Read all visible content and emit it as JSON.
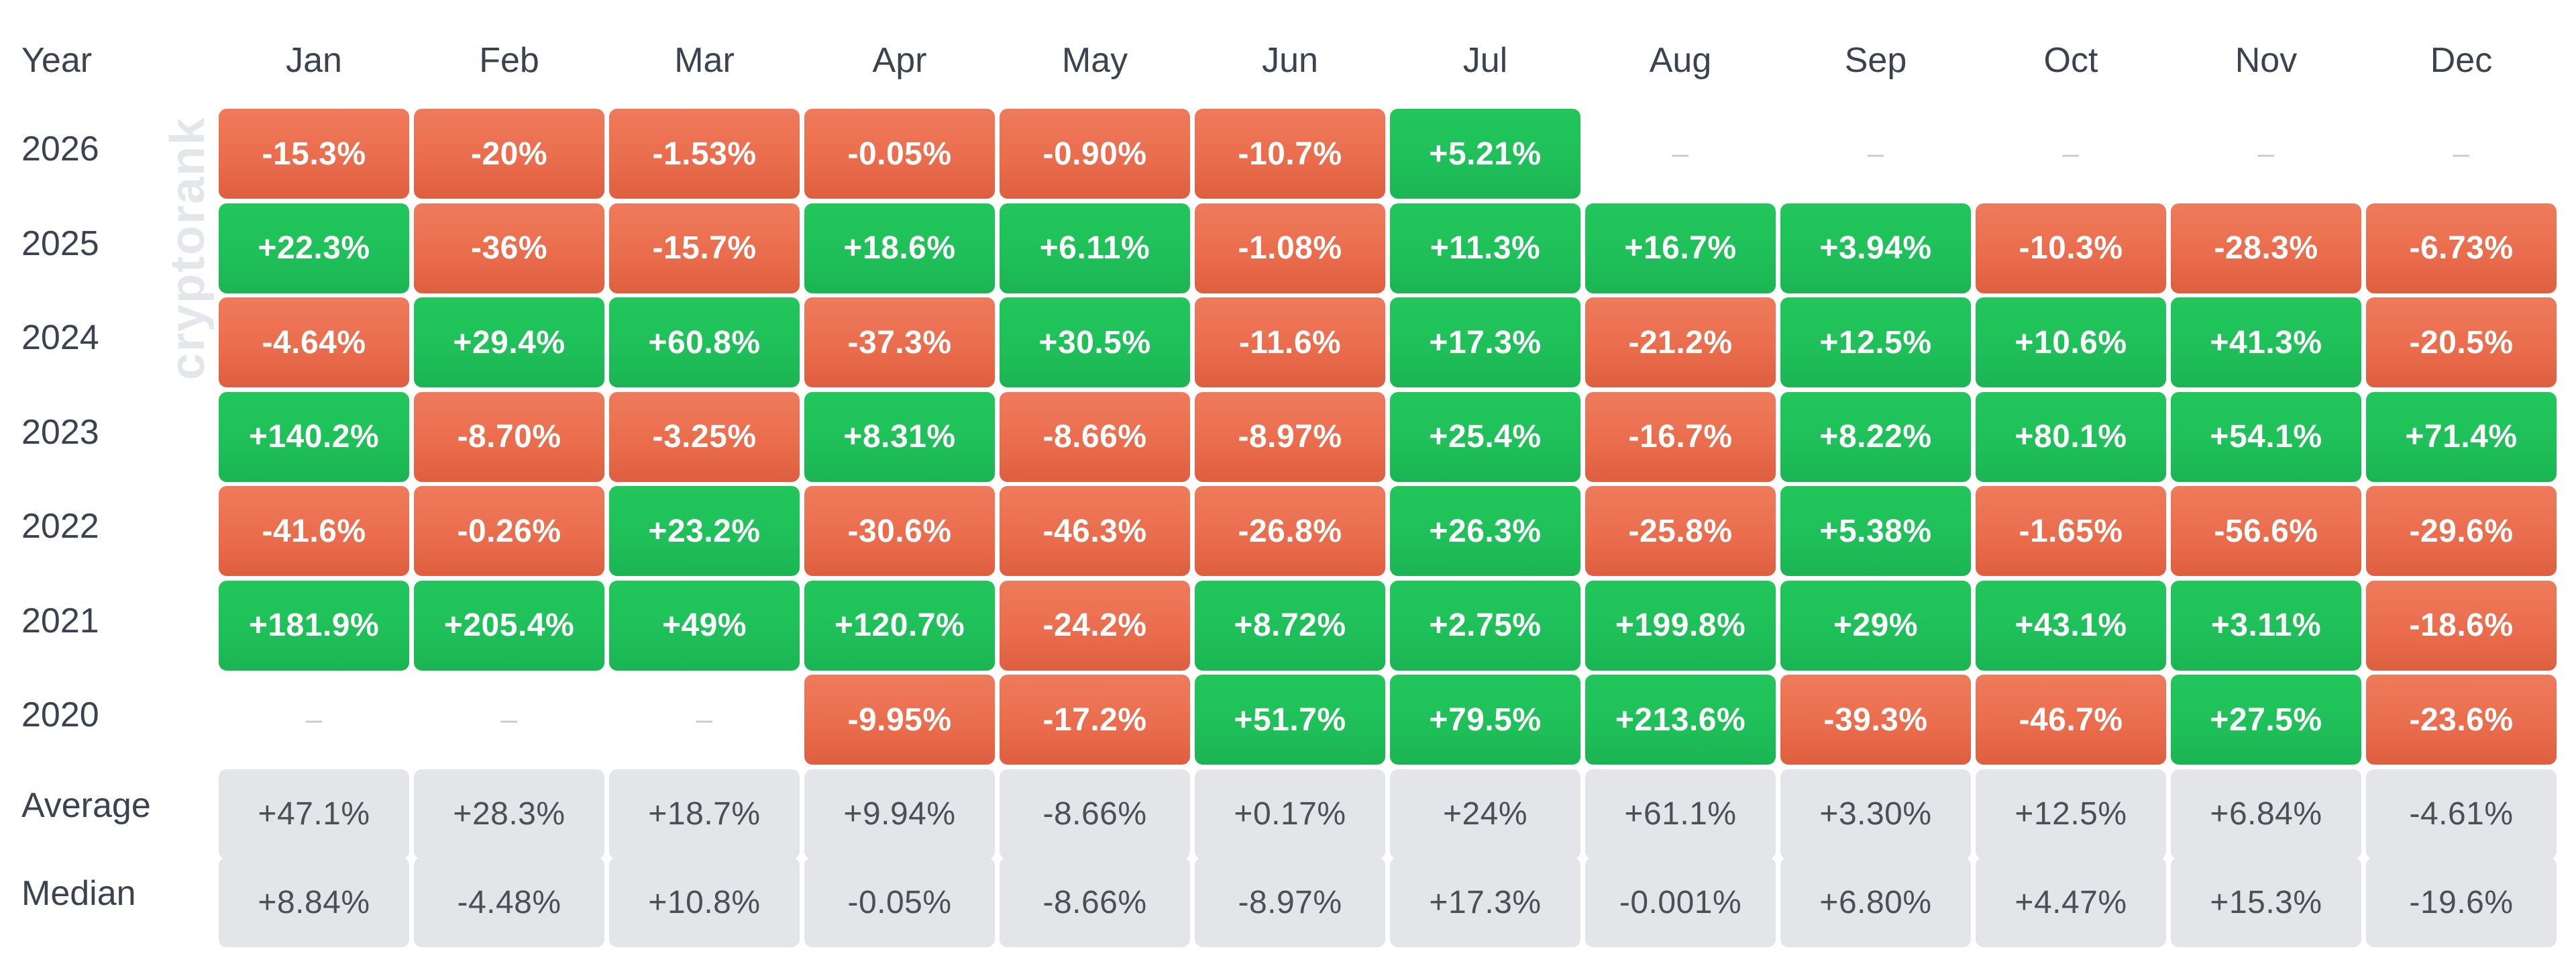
{
  "chart_data": {
    "type": "heatmap",
    "watermark": "cryptorank",
    "year_header": "Year",
    "months": [
      "Jan",
      "Feb",
      "Mar",
      "Apr",
      "May",
      "Jun",
      "Jul",
      "Aug",
      "Sep",
      "Oct",
      "Nov",
      "Dec"
    ],
    "empty_symbol": "–",
    "colors": {
      "positive": "#1fc05a",
      "negative": "#ea6d4d",
      "stat_bg": "#e3e5e9",
      "label_text": "#3b4250"
    },
    "rows": [
      {
        "year": "2026",
        "values": [
          "-15.3%",
          "-20%",
          "-1.53%",
          "-0.05%",
          "-0.90%",
          "-10.7%",
          "+5.21%",
          null,
          null,
          null,
          null,
          null
        ]
      },
      {
        "year": "2025",
        "values": [
          "+22.3%",
          "-36%",
          "-15.7%",
          "+18.6%",
          "+6.11%",
          "-1.08%",
          "+11.3%",
          "+16.7%",
          "+3.94%",
          "-10.3%",
          "-28.3%",
          "-6.73%"
        ]
      },
      {
        "year": "2024",
        "values": [
          "-4.64%",
          "+29.4%",
          "+60.8%",
          "-37.3%",
          "+30.5%",
          "-11.6%",
          "+17.3%",
          "-21.2%",
          "+12.5%",
          "+10.6%",
          "+41.3%",
          "-20.5%"
        ]
      },
      {
        "year": "2023",
        "values": [
          "+140.2%",
          "-8.70%",
          "-3.25%",
          "+8.31%",
          "-8.66%",
          "-8.97%",
          "+25.4%",
          "-16.7%",
          "+8.22%",
          "+80.1%",
          "+54.1%",
          "+71.4%"
        ]
      },
      {
        "year": "2022",
        "values": [
          "-41.6%",
          "-0.26%",
          "+23.2%",
          "-30.6%",
          "-46.3%",
          "-26.8%",
          "+26.3%",
          "-25.8%",
          "+5.38%",
          "-1.65%",
          "-56.6%",
          "-29.6%"
        ]
      },
      {
        "year": "2021",
        "values": [
          "+181.9%",
          "+205.4%",
          "+49%",
          "+120.7%",
          "-24.2%",
          "+8.72%",
          "+2.75%",
          "+199.8%",
          "+29%",
          "+43.1%",
          "+3.11%",
          "-18.6%"
        ]
      },
      {
        "year": "2020",
        "values": [
          null,
          null,
          null,
          "-9.95%",
          "-17.2%",
          "+51.7%",
          "+79.5%",
          "+213.6%",
          "-39.3%",
          "-46.7%",
          "+27.5%",
          "-23.6%"
        ]
      }
    ],
    "stats": [
      {
        "label": "Average",
        "values": [
          "+47.1%",
          "+28.3%",
          "+18.7%",
          "+9.94%",
          "-8.66%",
          "+0.17%",
          "+24%",
          "+61.1%",
          "+3.30%",
          "+12.5%",
          "+6.84%",
          "-4.61%"
        ]
      },
      {
        "label": "Median",
        "values": [
          "+8.84%",
          "-4.48%",
          "+10.8%",
          "-0.05%",
          "-8.66%",
          "-8.97%",
          "+17.3%",
          "-0.001%",
          "+6.80%",
          "+4.47%",
          "+15.3%",
          "-19.6%"
        ]
      }
    ]
  }
}
